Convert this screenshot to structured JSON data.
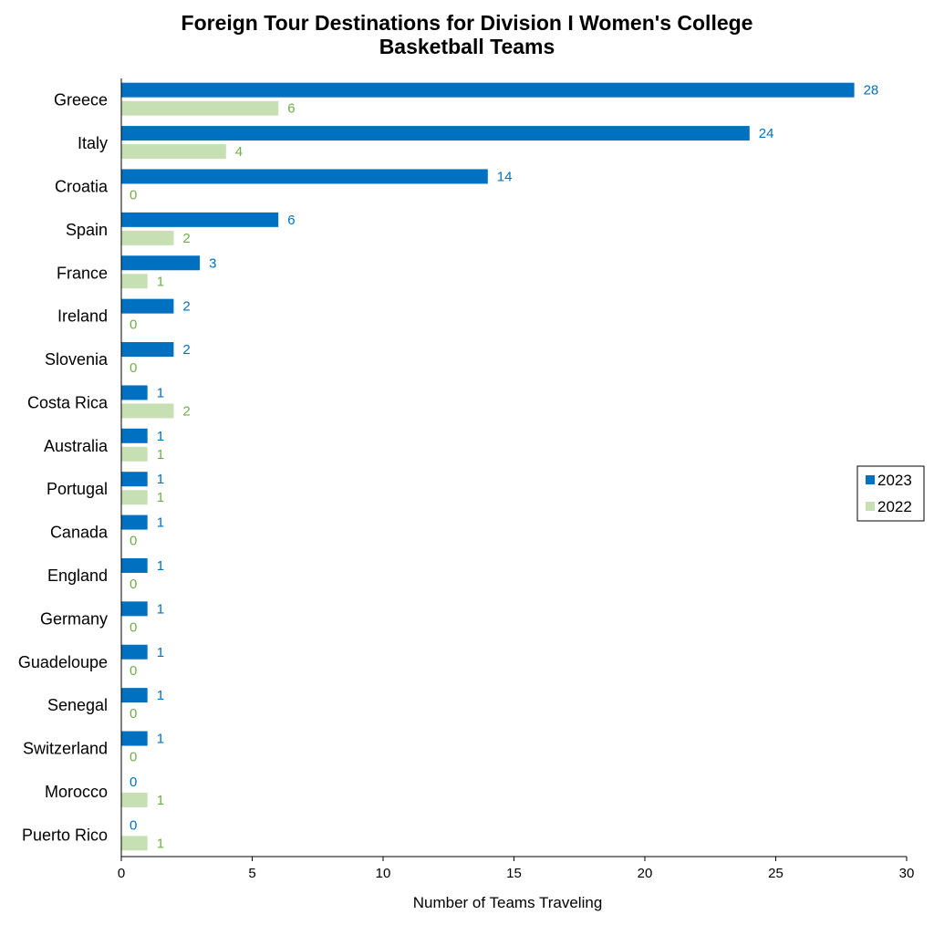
{
  "chart_data": {
    "type": "bar",
    "orientation": "horizontal",
    "title_lines": [
      "Foreign Tour Destinations for Division I Women's College",
      "Basketball Teams"
    ],
    "xlabel": "Number of Teams Traveling",
    "ylabel": "",
    "xlim": [
      0,
      30
    ],
    "xticks": [
      0,
      5,
      10,
      15,
      20,
      25,
      30
    ],
    "grid": false,
    "legend_position": "right",
    "categories": [
      "Greece",
      "Italy",
      "Croatia",
      "Spain",
      "France",
      "Ireland",
      "Slovenia",
      "Costa Rica",
      "Australia",
      "Portugal",
      "Canada",
      "England",
      "Germany",
      "Guadeloupe",
      "Senegal",
      "Switzerland",
      "Morocco",
      "Puerto Rico"
    ],
    "series": [
      {
        "name": "2023",
        "color": "#0070c0",
        "values": [
          28,
          24,
          14,
          6,
          3,
          2,
          2,
          1,
          1,
          1,
          1,
          1,
          1,
          1,
          1,
          1,
          0,
          0
        ]
      },
      {
        "name": "2022",
        "color": "#c6e0b4",
        "label_color": "#70ad47",
        "values": [
          6,
          4,
          0,
          2,
          1,
          0,
          0,
          2,
          1,
          1,
          0,
          0,
          0,
          0,
          0,
          0,
          1,
          1
        ]
      }
    ]
  }
}
